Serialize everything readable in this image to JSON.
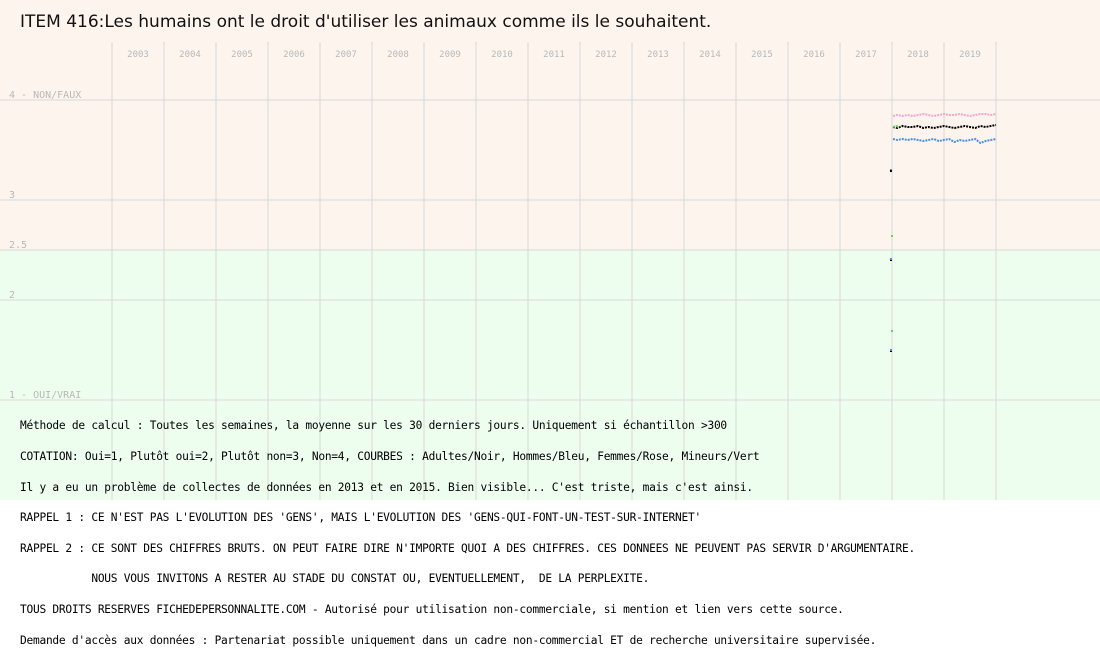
{
  "title": "ITEM 416:Les humains ont le droit d'utiliser les animaux comme ils le souhaitent.",
  "notes": [
    "Méthode de calcul : Toutes les semaines, la moyenne sur les 30 derniers jours. Uniquement si échantillon >300",
    "COTATION: Oui=1, Plutôt oui=2, Plutôt non=3, Non=4, COURBES : Adultes/Noir, Hommes/Bleu, Femmes/Rose, Mineurs/Vert",
    "Il y a eu un problème de collectes de données en 2013 et en 2015. Bien visible... C'est triste, mais c'est ainsi.",
    "RAPPEL 1 : CE N'EST PAS L'EVOLUTION DES 'GENS', MAIS L'EVOLUTION DES 'GENS-QUI-FONT-UN-TEST-SUR-INTERNET'",
    "RAPPEL 2 : CE SONT DES CHIFFRES BRUTS. ON PEUT FAIRE DIRE N'IMPORTE QUOI A DES CHIFFRES. CES DONNEES NE PEUVENT PAS SERVIR D'ARGUMENTAIRE.",
    "           NOUS VOUS INVITONS A RESTER AU STADE DU CONSTAT OU, EVENTUELLEMENT,  DE LA PERPLEXITE.",
    "TOUS DROITS RESERVES FICHEDEPERSONNALITE.COM - Autorisé pour utilisation non-commerciale, si mention et lien vers cette source.",
    "Demande d'accès aux données : Partenariat possible uniquement dans un cadre non-commercial ET de recherche universitaire supervisée."
  ],
  "colors": {
    "zone_non": "#fdf4ee",
    "zone_oui": "#eefeee",
    "grid": "#d8d8d8",
    "tick_text": "#b8b8b8",
    "adultes": "#000000",
    "hommes": "#4a90e2",
    "femmes": "#f4a6d0",
    "mineurs": "#6fcf57"
  },
  "chart_data": {
    "type": "line",
    "title": "ITEM 416:Les humains ont le droit d'utiliser les animaux comme ils le souhaitent.",
    "x_tick_labels": [
      "2003",
      "2004",
      "2005",
      "2006",
      "2007",
      "2008",
      "2009",
      "2010",
      "2011",
      "2012",
      "2013",
      "2014",
      "2015",
      "2016",
      "2017",
      "2018",
      "2019"
    ],
    "xlim": [
      2003,
      2020
    ],
    "y_tick_labels": [
      {
        "value": 4,
        "label": "4 - NON/FAUX"
      },
      {
        "value": 3,
        "label": "3"
      },
      {
        "value": 2.5,
        "label": "2.5"
      },
      {
        "value": 2,
        "label": "2"
      },
      {
        "value": 1,
        "label": "1 - OUI/VRAI"
      }
    ],
    "ylim": [
      1,
      4
    ],
    "y_inverted": false,
    "series": [
      {
        "name": "Adultes",
        "color": "#000000",
        "x": [
          2018.02,
          2018.1,
          2018.2,
          2018.3,
          2018.4,
          2018.5,
          2018.6,
          2018.7,
          2018.8,
          2018.9,
          2019.0,
          2019.1,
          2019.2,
          2019.3,
          2019.4,
          2019.5,
          2019.6,
          2019.7,
          2019.8,
          2019.9,
          2020.0
        ],
        "y": [
          3.73,
          3.72,
          3.74,
          3.73,
          3.73,
          3.74,
          3.72,
          3.73,
          3.72,
          3.73,
          3.74,
          3.73,
          3.72,
          3.73,
          3.74,
          3.73,
          3.72,
          3.74,
          3.73,
          3.74,
          3.75
        ]
      },
      {
        "name": "Hommes",
        "color": "#4a90e2",
        "x": [
          2018.02,
          2018.1,
          2018.2,
          2018.3,
          2018.4,
          2018.5,
          2018.6,
          2018.7,
          2018.8,
          2018.9,
          2019.0,
          2019.1,
          2019.2,
          2019.3,
          2019.4,
          2019.5,
          2019.6,
          2019.7,
          2019.8,
          2019.9,
          2020.0
        ],
        "y": [
          3.61,
          3.6,
          3.61,
          3.6,
          3.61,
          3.6,
          3.59,
          3.6,
          3.61,
          3.59,
          3.6,
          3.61,
          3.58,
          3.6,
          3.59,
          3.6,
          3.61,
          3.57,
          3.59,
          3.6,
          3.61
        ]
      },
      {
        "name": "Femmes",
        "color": "#f4a6d0",
        "x": [
          2018.02,
          2018.1,
          2018.2,
          2018.3,
          2018.4,
          2018.5,
          2018.6,
          2018.7,
          2018.8,
          2018.9,
          2019.0,
          2019.1,
          2019.2,
          2019.3,
          2019.4,
          2019.5,
          2019.6,
          2019.7,
          2019.8,
          2019.9,
          2020.0
        ],
        "y": [
          3.84,
          3.85,
          3.84,
          3.85,
          3.84,
          3.85,
          3.86,
          3.85,
          3.84,
          3.85,
          3.86,
          3.85,
          3.85,
          3.86,
          3.85,
          3.84,
          3.85,
          3.86,
          3.86,
          3.85,
          3.86
        ]
      },
      {
        "name": "Mineurs",
        "color": "#6fcf57",
        "x": [
          2018.02,
          2018.08,
          2018.14
        ],
        "y": [
          3.73,
          3.74,
          3.73
        ]
      }
    ],
    "isolated_points": [
      {
        "color": "#4a90e2",
        "x": 2017.98,
        "y": 3.3
      },
      {
        "color": "#000000",
        "x": 2017.98,
        "y": 3.29
      },
      {
        "color": "#6fcf57",
        "x": 2018.0,
        "y": 2.64
      },
      {
        "color": "#000000",
        "x": 2017.98,
        "y": 2.4
      },
      {
        "color": "#4a90e2",
        "x": 2017.98,
        "y": 2.41
      },
      {
        "color": "#6fcf57",
        "x": 2018.0,
        "y": 1.69
      },
      {
        "color": "#000000",
        "x": 2017.98,
        "y": 1.49
      },
      {
        "color": "#4a90e2",
        "x": 2017.98,
        "y": 1.5
      }
    ]
  }
}
